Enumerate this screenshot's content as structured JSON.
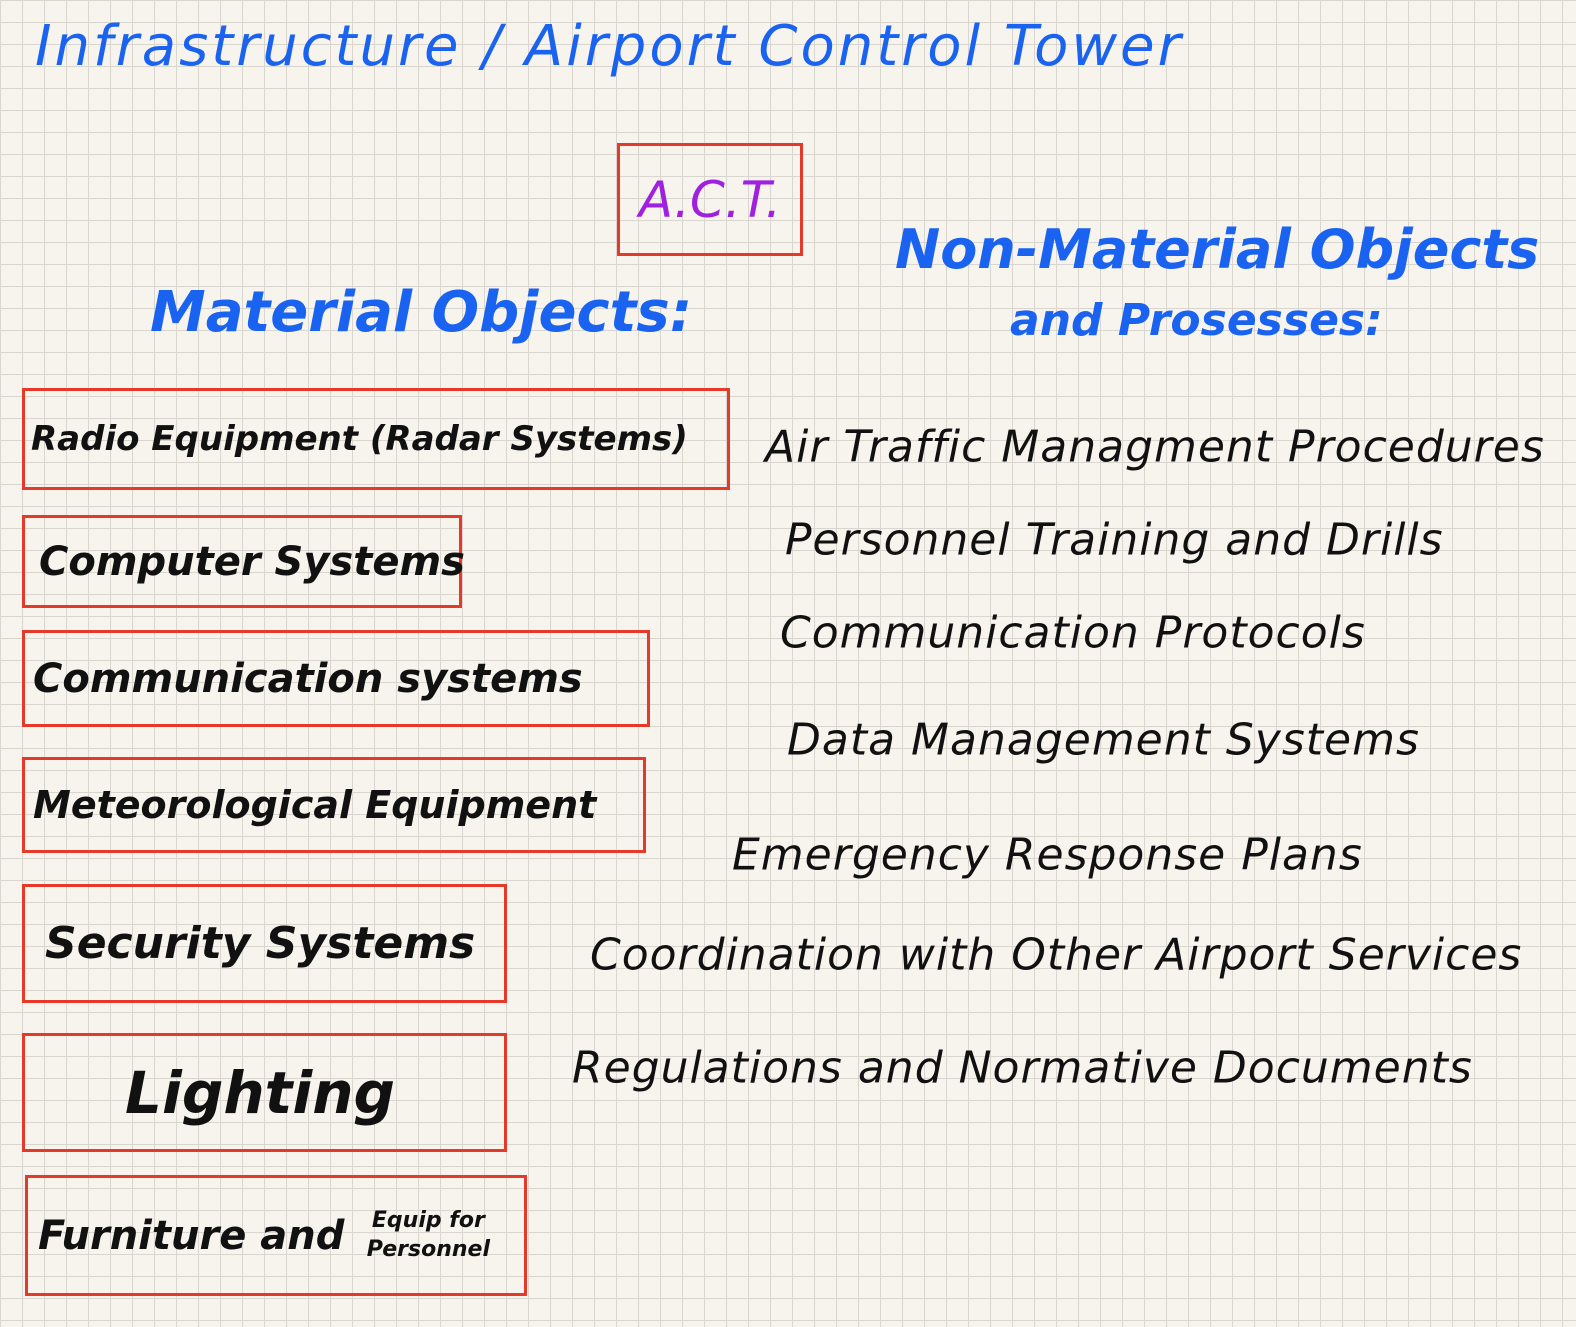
{
  "header": {
    "title": "Infrastructure / Airport Control Tower",
    "badge": "A.C.T."
  },
  "material": {
    "heading": "Material Objects:",
    "items": [
      "Radio Equipment (Radar Systems)",
      "Computer Systems",
      "Communication systems",
      "Meteorological Equipment",
      "Security Systems",
      "Lighting",
      "Furniture and"
    ],
    "note": "Equip for Personnel"
  },
  "non_material": {
    "heading": [
      "Non-Material Objects",
      "and Prosesses:"
    ],
    "items": [
      "Air Traffic Managment Procedures",
      "Personnel Training and Drills",
      "Communication Protocols",
      "Data Management Systems",
      "Emergency Response Plans",
      "Coordination with Other Airport Services",
      "Regulations and Normative Documents"
    ]
  }
}
